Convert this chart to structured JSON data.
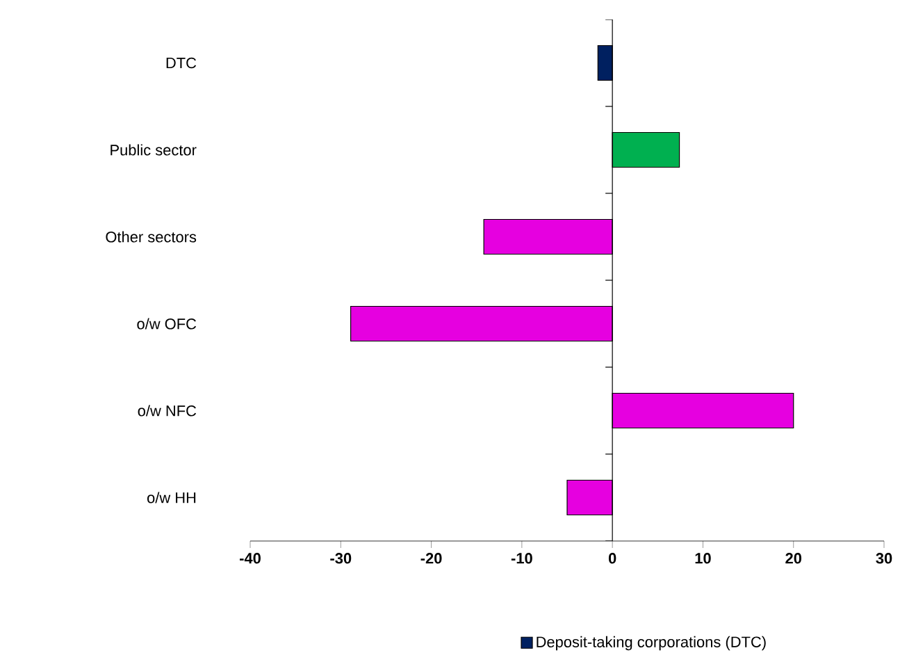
{
  "chart_data": {
    "type": "bar",
    "orientation": "horizontal",
    "categories": [
      "DTC",
      "Public sector",
      "Other sectors",
      "o/w OFC",
      "o/w NFC",
      "o/w HH"
    ],
    "series": [
      {
        "name": "Deposit-taking corporations (DTC)",
        "color": "#002060",
        "values": [
          -1.6,
          null,
          null,
          null,
          null,
          null
        ]
      },
      {
        "color": "#00b050",
        "values": [
          null,
          7.4,
          null,
          null,
          null,
          null
        ]
      },
      {
        "color": "#e600e0",
        "values": [
          null,
          null,
          -14.2,
          -28.9,
          20,
          -5
        ]
      }
    ],
    "xlim": [
      -40,
      30
    ],
    "xticks": [
      -40,
      -30,
      -20,
      -10,
      0,
      10,
      20,
      30
    ],
    "legend": "bottom"
  }
}
